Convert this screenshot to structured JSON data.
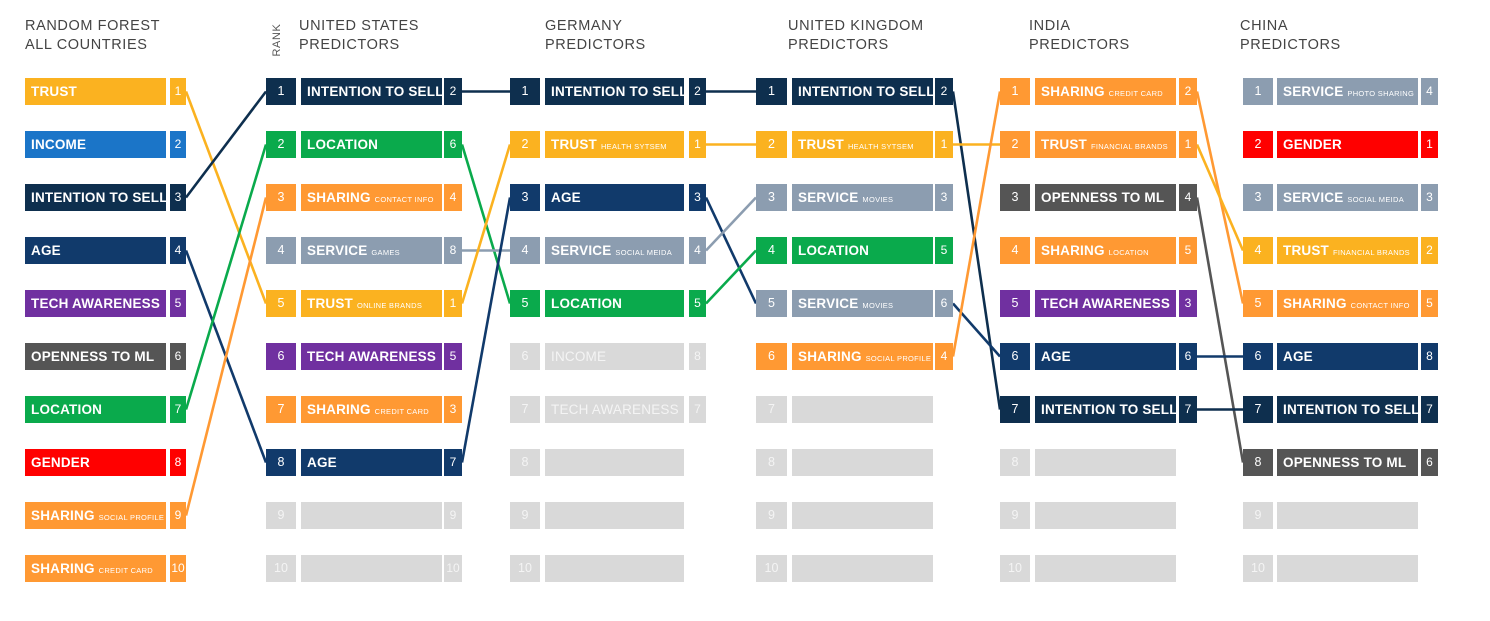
{
  "colors": {
    "trust": "#FBB220",
    "income": "#1B75C8",
    "intention": "#0E2F4E",
    "age": "#113A6B",
    "tech": "#7030A0",
    "openness": "#555555",
    "location": "#0AAA4C",
    "gender": "#FF0000",
    "sharing": "#FF9933",
    "service": "#8C9DB0",
    "empty": "#D9D9D9"
  },
  "rank_label": "RANK",
  "columns": [
    {
      "id": "rf",
      "header": [
        "RANDOM FOREST",
        "ALL COUNTRIES"
      ],
      "items": [
        {
          "main": "TRUST",
          "sub": "",
          "color": "trust",
          "num": "1",
          "show_rank": false
        },
        {
          "main": "INCOME",
          "sub": "",
          "color": "income",
          "num": "2",
          "show_rank": false
        },
        {
          "main": "INTENTION TO SELL",
          "sub": "",
          "color": "intention",
          "num": "3",
          "show_rank": false
        },
        {
          "main": "AGE",
          "sub": "",
          "color": "age",
          "num": "4",
          "show_rank": false
        },
        {
          "main": "TECH AWARENESS",
          "sub": "",
          "color": "tech",
          "num": "5",
          "show_rank": false
        },
        {
          "main": "OPENNESS TO ML",
          "sub": "",
          "color": "openness",
          "num": "6",
          "show_rank": false
        },
        {
          "main": "LOCATION",
          "sub": "",
          "color": "location",
          "num": "7",
          "show_rank": false
        },
        {
          "main": "GENDER",
          "sub": "",
          "color": "gender",
          "num": "8",
          "show_rank": false
        },
        {
          "main": "SHARING",
          "sub": "SOCIAL PROFILE",
          "color": "sharing",
          "num": "9",
          "show_rank": false
        },
        {
          "main": "SHARING",
          "sub": "CREDIT CARD",
          "color": "sharing",
          "num": "10",
          "show_rank": false
        }
      ]
    },
    {
      "id": "us",
      "header": [
        "UNITED STATES",
        "PREDICTORS"
      ],
      "items": [
        {
          "rank": "1",
          "main": "INTENTION TO SELL",
          "sub": "",
          "color": "intention",
          "num": "2"
        },
        {
          "rank": "2",
          "main": "LOCATION",
          "sub": "",
          "color": "location",
          "num": "6"
        },
        {
          "rank": "3",
          "main": "SHARING",
          "sub": "CONTACT INFO",
          "color": "sharing",
          "num": "4"
        },
        {
          "rank": "4",
          "main": "SERVICE",
          "sub": "GAMES",
          "color": "service",
          "num": "8"
        },
        {
          "rank": "5",
          "main": "TRUST",
          "sub": "ONLINE BRANDS",
          "color": "trust",
          "num": "1"
        },
        {
          "rank": "6",
          "main": "TECH AWARENESS",
          "sub": "",
          "color": "tech",
          "num": "5"
        },
        {
          "rank": "7",
          "main": "SHARING",
          "sub": "CREDIT CARD",
          "color": "sharing",
          "num": "3"
        },
        {
          "rank": "8",
          "main": "AGE",
          "sub": "",
          "color": "age",
          "num": "7"
        },
        {
          "rank": "9",
          "main": "",
          "sub": "",
          "color": "empty",
          "num": "9"
        },
        {
          "rank": "10",
          "main": "",
          "sub": "",
          "color": "empty",
          "num": "10"
        }
      ]
    },
    {
      "id": "de",
      "header": [
        "GERMANY",
        "PREDICTORS"
      ],
      "items": [
        {
          "rank": "1",
          "main": "INTENTION TO SELL",
          "sub": "",
          "color": "intention",
          "num": "2"
        },
        {
          "rank": "2",
          "main": "TRUST",
          "sub": "HEALTH SYTSEM",
          "color": "trust",
          "num": "1"
        },
        {
          "rank": "3",
          "main": "AGE",
          "sub": "",
          "color": "age",
          "num": "3"
        },
        {
          "rank": "4",
          "main": "SERVICE",
          "sub": "SOCIAL MEIDA",
          "color": "service",
          "num": "4"
        },
        {
          "rank": "5",
          "main": "LOCATION",
          "sub": "",
          "color": "location",
          "num": "5"
        },
        {
          "rank": "6",
          "main": "INCOME",
          "sub": "",
          "color": "empty",
          "num": "8"
        },
        {
          "rank": "7",
          "main": "TECH AWARENESS",
          "sub": "",
          "color": "empty",
          "num": "7"
        },
        {
          "rank": "8",
          "main": "",
          "sub": "",
          "color": "empty",
          "num": ""
        },
        {
          "rank": "9",
          "main": "",
          "sub": "",
          "color": "empty",
          "num": ""
        },
        {
          "rank": "10",
          "main": "",
          "sub": "",
          "color": "empty",
          "num": ""
        }
      ]
    },
    {
      "id": "uk",
      "header": [
        "UNITED KINGDOM",
        "PREDICTORS"
      ],
      "items": [
        {
          "rank": "1",
          "main": "INTENTION TO SELL",
          "sub": "",
          "color": "intention",
          "num": "2"
        },
        {
          "rank": "2",
          "main": "TRUST",
          "sub": "HEALTH SYTSEM",
          "color": "trust",
          "num": "1"
        },
        {
          "rank": "3",
          "main": "SERVICE",
          "sub": "MOVIES",
          "color": "service",
          "num": "3"
        },
        {
          "rank": "4",
          "main": "LOCATION",
          "sub": "",
          "color": "location",
          "num": "5"
        },
        {
          "rank": "5",
          "main": "SERVICE",
          "sub": "MOVIES",
          "color": "service",
          "num": "6"
        },
        {
          "rank": "6",
          "main": "SHARING",
          "sub": "SOCIAL PROFILE",
          "color": "sharing",
          "num": "4"
        },
        {
          "rank": "7",
          "main": "",
          "sub": "",
          "color": "empty",
          "num": ""
        },
        {
          "rank": "8",
          "main": "",
          "sub": "",
          "color": "empty",
          "num": ""
        },
        {
          "rank": "9",
          "main": "",
          "sub": "",
          "color": "empty",
          "num": ""
        },
        {
          "rank": "10",
          "main": "",
          "sub": "",
          "color": "empty",
          "num": ""
        }
      ]
    },
    {
      "id": "in",
      "header": [
        "INDIA",
        "PREDICTORS"
      ],
      "items": [
        {
          "rank": "1",
          "main": "SHARING",
          "sub": "CREDIT CARD",
          "color": "sharing",
          "num": "2"
        },
        {
          "rank": "2",
          "main": "TRUST",
          "sub": "FINANCIAL BRANDS",
          "color": "sharing",
          "num": "1"
        },
        {
          "rank": "3",
          "main": "OPENNESS TO ML",
          "sub": "",
          "color": "openness",
          "num": "4"
        },
        {
          "rank": "4",
          "main": "SHARING",
          "sub": "LOCATION",
          "color": "sharing",
          "num": "5"
        },
        {
          "rank": "5",
          "main": "TECH AWARENESS",
          "sub": "",
          "color": "tech",
          "num": "3"
        },
        {
          "rank": "6",
          "main": "AGE",
          "sub": "",
          "color": "age",
          "num": "6"
        },
        {
          "rank": "7",
          "main": "INTENTION TO SELL",
          "sub": "",
          "color": "intention",
          "num": "7"
        },
        {
          "rank": "8",
          "main": "",
          "sub": "",
          "color": "empty",
          "num": ""
        },
        {
          "rank": "9",
          "main": "",
          "sub": "",
          "color": "empty",
          "num": ""
        },
        {
          "rank": "10",
          "main": "",
          "sub": "",
          "color": "empty",
          "num": ""
        }
      ]
    },
    {
      "id": "cn",
      "header": [
        "CHINA",
        "PREDICTORS"
      ],
      "items": [
        {
          "rank": "1",
          "main": "SERVICE",
          "sub": "PHOTO SHARING",
          "color": "service",
          "num": "4"
        },
        {
          "rank": "2",
          "main": "GENDER",
          "sub": "",
          "color": "gender",
          "num": "1"
        },
        {
          "rank": "3",
          "main": "SERVICE",
          "sub": "SOCIAL MEIDA",
          "color": "service",
          "num": "3"
        },
        {
          "rank": "4",
          "main": "TRUST",
          "sub": "FINANCIAL BRANDS",
          "color": "trust",
          "num": "2"
        },
        {
          "rank": "5",
          "main": "SHARING",
          "sub": "CONTACT INFO",
          "color": "sharing",
          "num": "5"
        },
        {
          "rank": "6",
          "main": "AGE",
          "sub": "",
          "color": "age",
          "num": "8"
        },
        {
          "rank": "7",
          "main": "INTENTION TO SELL",
          "sub": "",
          "color": "intention",
          "num": "7"
        },
        {
          "rank": "8",
          "main": "OPENNESS TO ML",
          "sub": "",
          "color": "openness",
          "num": "6"
        },
        {
          "rank": "9",
          "main": "",
          "sub": "",
          "color": "empty",
          "num": ""
        },
        {
          "rank": "10",
          "main": "",
          "sub": "",
          "color": "empty",
          "num": ""
        }
      ]
    }
  ],
  "connections": [
    {
      "from": [
        0,
        0
      ],
      "to": [
        1,
        4
      ],
      "color": "trust"
    },
    {
      "from": [
        0,
        2
      ],
      "to": [
        1,
        0
      ],
      "color": "intention"
    },
    {
      "from": [
        0,
        3
      ],
      "to": [
        1,
        7
      ],
      "color": "age"
    },
    {
      "from": [
        0,
        6
      ],
      "to": [
        1,
        1
      ],
      "color": "location"
    },
    {
      "from": [
        0,
        8
      ],
      "to": [
        1,
        2
      ],
      "color": "sharing"
    },
    {
      "from": [
        1,
        0
      ],
      "to": [
        2,
        0
      ],
      "color": "intention"
    },
    {
      "from": [
        1,
        1
      ],
      "to": [
        2,
        4
      ],
      "color": "location"
    },
    {
      "from": [
        1,
        3
      ],
      "to": [
        2,
        3
      ],
      "color": "service"
    },
    {
      "from": [
        1,
        4
      ],
      "to": [
        2,
        1
      ],
      "color": "trust"
    },
    {
      "from": [
        1,
        7
      ],
      "to": [
        2,
        2
      ],
      "color": "age"
    },
    {
      "from": [
        2,
        0
      ],
      "to": [
        3,
        0
      ],
      "color": "intention"
    },
    {
      "from": [
        2,
        1
      ],
      "to": [
        3,
        1
      ],
      "color": "trust"
    },
    {
      "from": [
        2,
        2
      ],
      "to": [
        3,
        4
      ],
      "color": "age"
    },
    {
      "from": [
        2,
        3
      ],
      "to": [
        3,
        2
      ],
      "color": "service"
    },
    {
      "from": [
        2,
        4
      ],
      "to": [
        3,
        3
      ],
      "color": "location"
    },
    {
      "from": [
        3,
        0
      ],
      "to": [
        4,
        6
      ],
      "color": "intention"
    },
    {
      "from": [
        3,
        1
      ],
      "to": [
        4,
        1
      ],
      "color": "trust"
    },
    {
      "from": [
        3,
        4
      ],
      "to": [
        4,
        5
      ],
      "color": "age"
    },
    {
      "from": [
        3,
        5
      ],
      "to": [
        4,
        0
      ],
      "color": "sharing"
    },
    {
      "from": [
        4,
        0
      ],
      "to": [
        5,
        4
      ],
      "color": "sharing"
    },
    {
      "from": [
        4,
        1
      ],
      "to": [
        5,
        3
      ],
      "color": "trust"
    },
    {
      "from": [
        4,
        2
      ],
      "to": [
        5,
        7
      ],
      "color": "openness"
    },
    {
      "from": [
        4,
        5
      ],
      "to": [
        5,
        5
      ],
      "color": "age"
    },
    {
      "from": [
        4,
        6
      ],
      "to": [
        5,
        6
      ],
      "color": "intention"
    }
  ]
}
